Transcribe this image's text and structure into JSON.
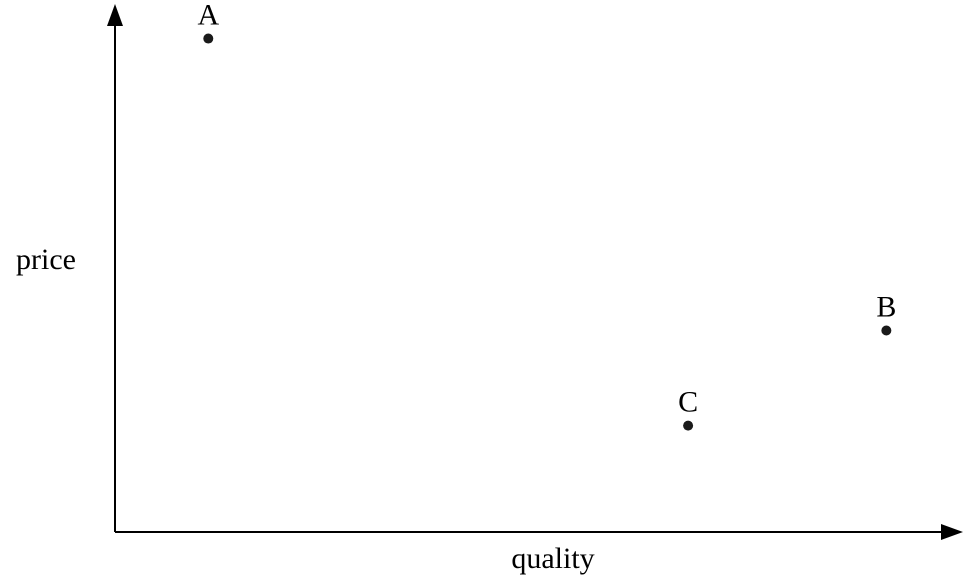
{
  "chart_data": {
    "type": "scatter",
    "title": "",
    "xlabel": "quality",
    "ylabel": "price",
    "xlim": [
      0,
      10
    ],
    "ylim": [
      0,
      10
    ],
    "grid": false,
    "legend": "none",
    "ticks": "none",
    "points": [
      {
        "label": "A",
        "x": 1.12,
        "y": 9.6
      },
      {
        "label": "B",
        "x": 9.26,
        "y": 3.92
      },
      {
        "label": "C",
        "x": 6.88,
        "y": 2.07
      }
    ],
    "colors": {
      "axis": "#000000",
      "point": "#1a1a1a"
    }
  }
}
